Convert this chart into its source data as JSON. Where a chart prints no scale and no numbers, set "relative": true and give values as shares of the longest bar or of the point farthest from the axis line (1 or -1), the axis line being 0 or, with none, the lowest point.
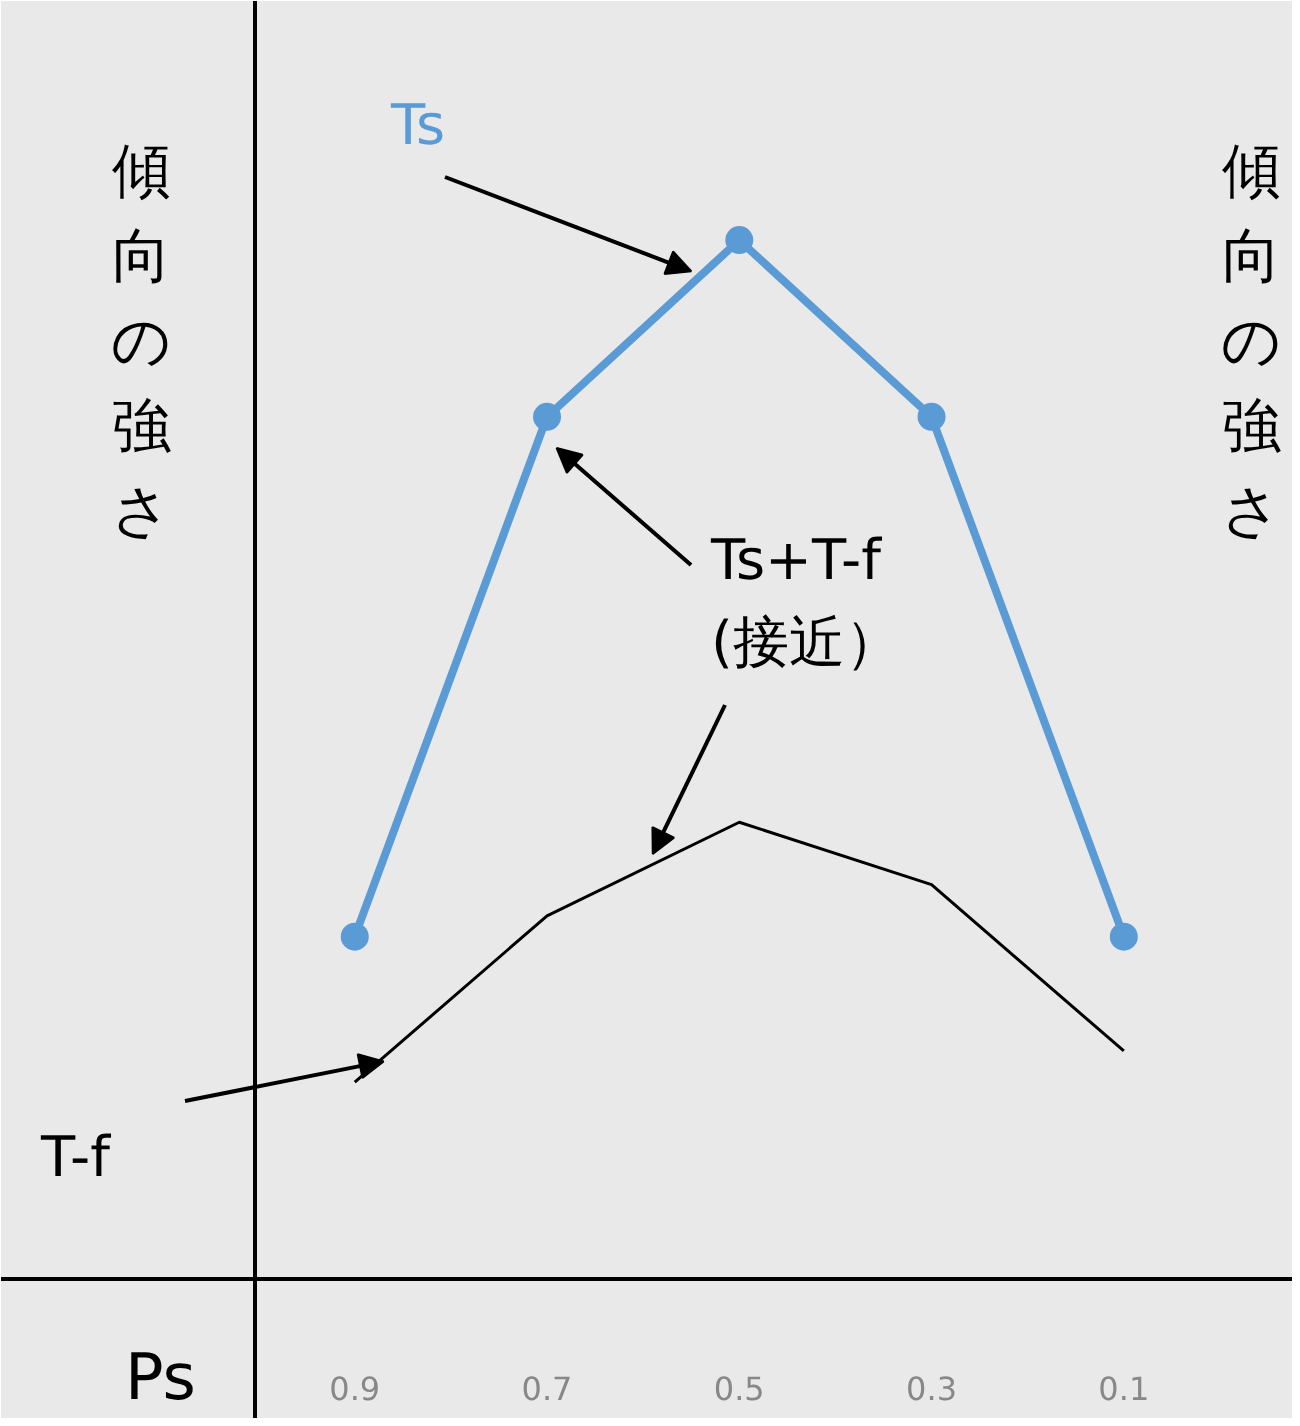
{
  "chart_data": {
    "type": "line",
    "relative": true,
    "categories": [
      "0.9",
      "0.7",
      "0.5",
      "0.3",
      "0.1"
    ],
    "xlabel": "Ps",
    "ylabel": "傾向の強さ",
    "y2label": "傾向の強さ",
    "marker": "circle",
    "series": [
      {
        "name": "Ts",
        "color": "#5b9bd5",
        "values": [
          0.33,
          0.83,
          1,
          0.83,
          0.33
        ]
      },
      {
        "name": "T-f",
        "color": "#000000",
        "marker": "none",
        "values": [
          0.19,
          0.35,
          0.44,
          0.38,
          0.22
        ]
      }
    ],
    "annotations": [
      "Ts+T-f\n(接近）"
    ]
  }
}
